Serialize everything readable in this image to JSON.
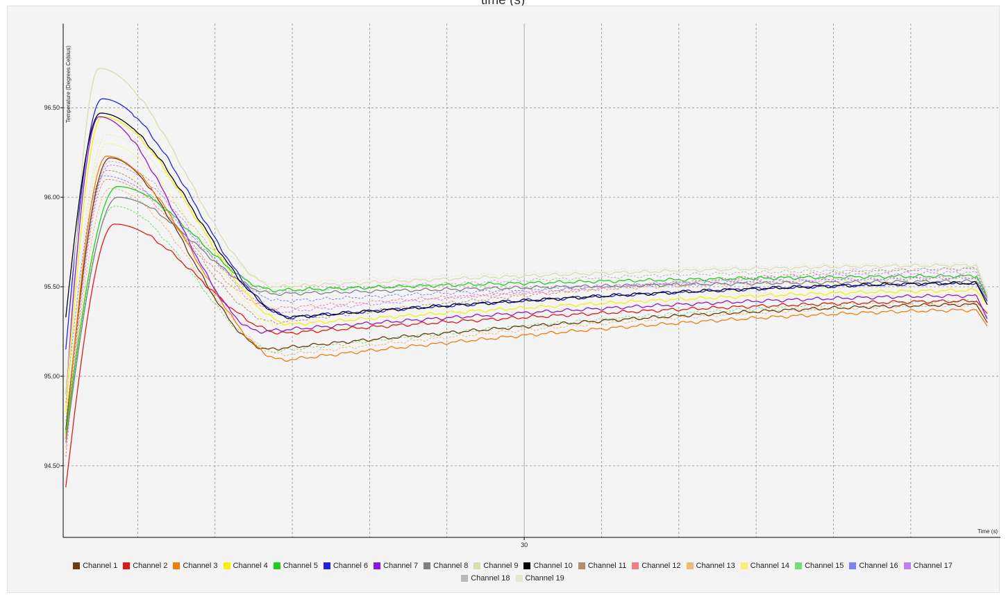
{
  "page": {
    "top_title": "time (s)"
  },
  "chart_data": {
    "type": "line",
    "xlabel": "Time (s)",
    "ylabel": "Temperature (Degrees Celsius)",
    "x_tick_labels": [
      {
        "x": 30,
        "label": "30"
      }
    ],
    "y_ticks": [
      96.5,
      96.0,
      95.5,
      95.0,
      94.5
    ],
    "y_tick_labels": [
      "96.50",
      "96.00",
      "95.50",
      "95.00",
      "94.50"
    ],
    "xlim": [
      0.18,
      60.8
    ],
    "ylim": [
      94.1,
      96.97
    ],
    "grid": true,
    "grid_x": [
      5,
      10,
      15,
      20,
      25,
      35,
      40,
      45,
      50,
      55
    ],
    "legend_position": "bottom",
    "series": [
      {
        "name": "Channel 1",
        "color": "#6e3a0f",
        "dashed": false,
        "peak_t": 3.2,
        "start": 94.7,
        "peak": 96.22,
        "min_t": 13.5,
        "min_v": 95.15,
        "end": 95.4,
        "finish": 95.3
      },
      {
        "name": "Channel 2",
        "color": "#e01818",
        "dashed": false,
        "peak_t": 3.5,
        "start": 94.38,
        "peak": 95.85,
        "min_t": 14.5,
        "min_v": 95.24,
        "end": 95.42,
        "finish": 95.35
      },
      {
        "name": "Channel 3",
        "color": "#f07c10",
        "dashed": false,
        "peak_t": 3.0,
        "start": 94.65,
        "peak": 96.23,
        "min_t": 14.5,
        "min_v": 95.09,
        "end": 95.37,
        "finish": 95.28
      },
      {
        "name": "Channel 4",
        "color": "#f4f008",
        "dashed": false,
        "peak_t": 2.7,
        "start": 94.8,
        "peak": 96.45,
        "min_t": 15.0,
        "min_v": 95.29,
        "end": 95.48,
        "finish": 95.4
      },
      {
        "name": "Channel 5",
        "color": "#22cc22",
        "dashed": false,
        "peak_t": 3.7,
        "start": 94.68,
        "peak": 96.06,
        "min_t": 14.0,
        "min_v": 95.48,
        "end": 95.56,
        "finish": 95.45
      },
      {
        "name": "Channel 6",
        "color": "#2222dd",
        "dashed": false,
        "peak_t": 2.7,
        "start": 95.15,
        "peak": 96.55,
        "min_t": 15.0,
        "min_v": 95.33,
        "end": 95.52,
        "finish": 95.42
      },
      {
        "name": "Channel 7",
        "color": "#8a18d8",
        "dashed": false,
        "peak_t": 2.5,
        "start": 94.9,
        "peak": 96.45,
        "min_t": 13.0,
        "min_v": 95.25,
        "end": 95.45,
        "finish": 95.32
      },
      {
        "name": "Channel 8",
        "color": "#808080",
        "dashed": false,
        "peak_t": 3.7,
        "start": 94.63,
        "peak": 96.0,
        "min_t": 14.0,
        "min_v": 95.46,
        "end": 95.53,
        "finish": 95.44
      },
      {
        "name": "Channel 9",
        "color": "#dcdcb4",
        "dashed": false,
        "peak_t": 2.5,
        "start": 94.9,
        "peak": 96.72,
        "min_t": 14.0,
        "min_v": 95.5,
        "end": 95.62,
        "finish": 95.45
      },
      {
        "name": "Channel 10",
        "color": "#000000",
        "dashed": false,
        "peak_t": 2.6,
        "start": 95.33,
        "peak": 96.47,
        "min_t": 15.0,
        "min_v": 95.33,
        "end": 95.52,
        "finish": 95.4
      },
      {
        "name": "Channel 11",
        "color": "#b09070",
        "dashed": true,
        "peak_t": 3.0,
        "start": 94.6,
        "peak": 96.15,
        "min_t": 14.0,
        "min_v": 95.3,
        "end": 95.6,
        "finish": 95.45
      },
      {
        "name": "Channel 12",
        "color": "#f08080",
        "dashed": true,
        "peak_t": 3.0,
        "start": 94.55,
        "peak": 96.1,
        "min_t": 14.0,
        "min_v": 95.38,
        "end": 95.55,
        "finish": 95.43
      },
      {
        "name": "Channel 13",
        "color": "#f0b878",
        "dashed": true,
        "peak_t": 3.2,
        "start": 94.6,
        "peak": 96.05,
        "min_t": 14.5,
        "min_v": 95.12,
        "end": 95.4,
        "finish": 95.32
      },
      {
        "name": "Channel 14",
        "color": "#f8f070",
        "dashed": true,
        "peak_t": 3.0,
        "start": 94.7,
        "peak": 96.3,
        "min_t": 15.0,
        "min_v": 95.25,
        "end": 95.46,
        "finish": 95.38
      },
      {
        "name": "Channel 15",
        "color": "#70e070",
        "dashed": true,
        "peak_t": 3.5,
        "start": 94.65,
        "peak": 95.95,
        "min_t": 14.0,
        "min_v": 95.14,
        "end": 95.42,
        "finish": 95.33
      },
      {
        "name": "Channel 16",
        "color": "#8080f0",
        "dashed": true,
        "peak_t": 2.8,
        "start": 94.85,
        "peak": 96.12,
        "min_t": 14.5,
        "min_v": 95.42,
        "end": 95.55,
        "finish": 95.44
      },
      {
        "name": "Channel 17",
        "color": "#c080f0",
        "dashed": true,
        "peak_t": 3.2,
        "start": 94.7,
        "peak": 96.18,
        "min_t": 14.5,
        "min_v": 95.36,
        "end": 95.58,
        "finish": 95.45
      },
      {
        "name": "Channel 18",
        "color": "#b8b8b8",
        "dashed": true,
        "peak_t": 3.2,
        "start": 94.75,
        "peak": 96.2,
        "min_t": 14.0,
        "min_v": 95.47,
        "end": 95.6,
        "finish": 95.46
      },
      {
        "name": "Channel 19",
        "color": "#e6e6d2",
        "dashed": true,
        "peak_t": 3.0,
        "start": 94.8,
        "peak": 96.35,
        "min_t": 14.0,
        "min_v": 95.52,
        "end": 95.63,
        "finish": 95.48
      }
    ]
  }
}
